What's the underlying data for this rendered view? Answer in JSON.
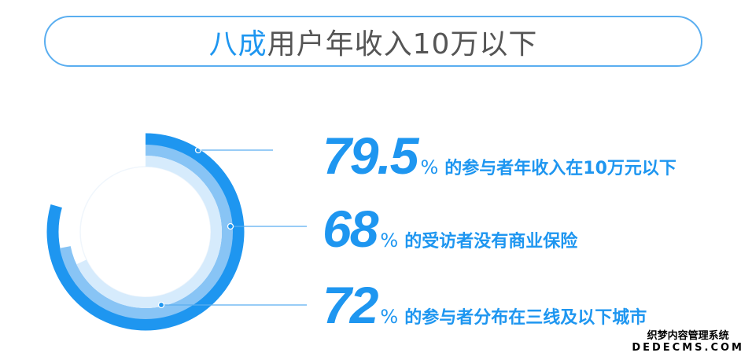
{
  "title": {
    "highlight": "八成",
    "rest": "用户年收入10万以下"
  },
  "colors": {
    "accent": "#1e96f0",
    "ring_outer": "#1e96f0",
    "ring_middle": "#88c4f5",
    "ring_inner": "#d6ebfc",
    "title_text": "#555555"
  },
  "chart_data": {
    "type": "radial-bar",
    "series": [
      {
        "value": 79.5,
        "unit": "%",
        "label": "的参与者年收入在10万元以下"
      },
      {
        "value": 68,
        "unit": "%",
        "label": "的受访者没有商业保险"
      },
      {
        "value": 72,
        "unit": "%",
        "label": "的参与者分布在三线及以下城市"
      }
    ],
    "ring_order_outer_to_inner": [
      79.5,
      72,
      68
    ],
    "range": [
      0,
      100
    ]
  },
  "stats": [
    {
      "num": "79.5",
      "pct": "%",
      "text": "的参与者年收入在10万元以下"
    },
    {
      "num": "68",
      "pct": "%",
      "text": "的受访者没有商业保险"
    },
    {
      "num": "72",
      "pct": "%",
      "text": "的参与者分布在三线及以下城市"
    }
  ],
  "watermark": {
    "line1": "织梦内容管理系统",
    "line2": "DEDECMS.COM"
  }
}
